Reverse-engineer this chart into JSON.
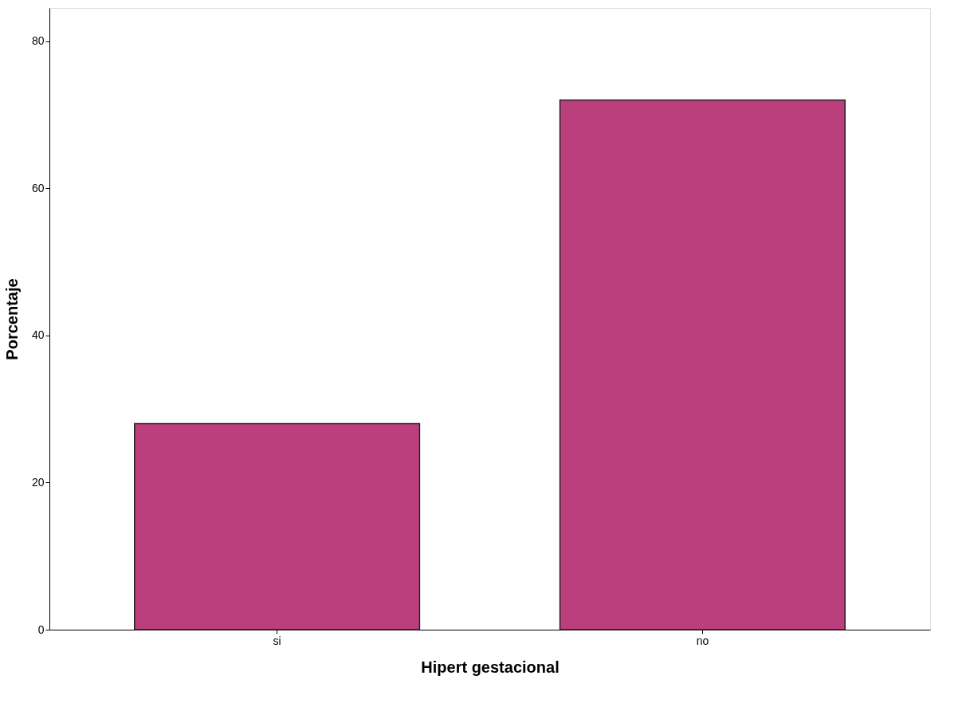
{
  "chart_data": {
    "type": "bar",
    "xlabel": "Hipert gestacional",
    "ylabel": "Porcentaje",
    "categories": [
      "si",
      "no"
    ],
    "values": [
      28,
      72
    ],
    "color": "#bc3f7d",
    "ylim": [
      0,
      84.5
    ],
    "yticks": [
      0,
      20,
      40,
      60,
      80
    ],
    "grid": false
  }
}
